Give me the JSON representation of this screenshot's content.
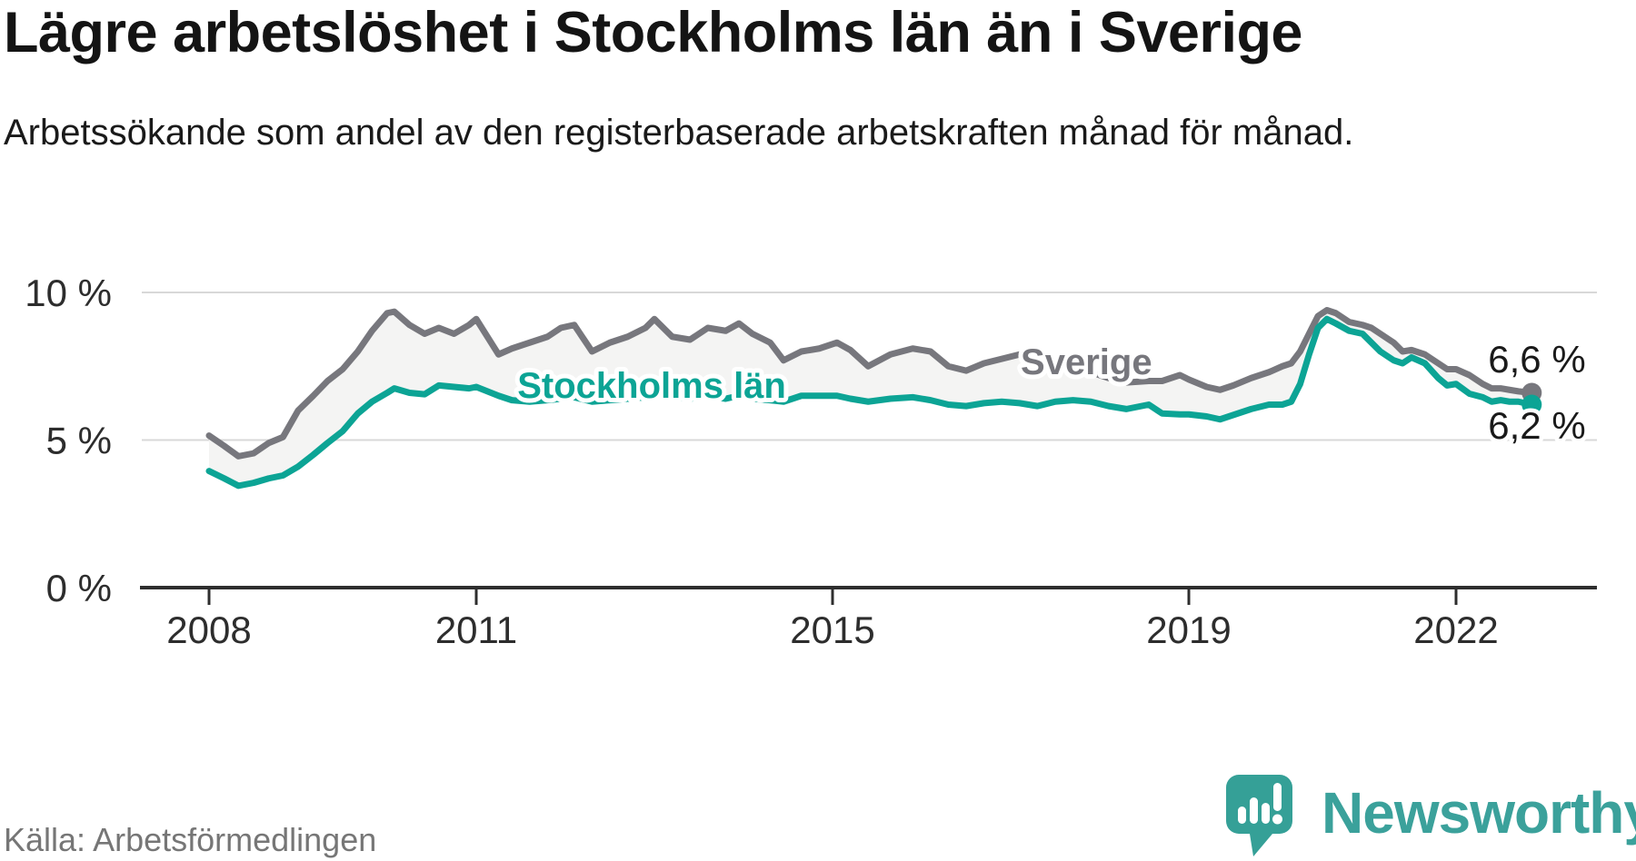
{
  "title": "Lägre arbetslöshet i Stockholms län än i Sverige",
  "subtitle": "Arbetssökande som andel av den registerbaserade arbetskraften månad för månad.",
  "source": "Källa: Arbetsförmedlingen",
  "logo": {
    "text": "Newsworthy",
    "icon": "speech-bubble-bar-chart-exclamation"
  },
  "colors": {
    "sverige": "#77777d",
    "stockholm": "#0ca495",
    "area_fill": "#f4f4f3",
    "gridline": "#d8d8d8",
    "axis": "#2e2e2e",
    "tick_label": "#2d2d2d",
    "end_label": "#1a1a1a",
    "logo_teal": "#35a097",
    "logo_text": "#3ba19b"
  },
  "chart_data": {
    "type": "line",
    "title": "Lägre arbetslöshet i Stockholms län än i Sverige",
    "subtitle": "Arbetssökande som andel av den registerbaserade arbetskraften månad för månad.",
    "xlabel": "",
    "ylabel": "",
    "ylim": [
      0,
      10.8
    ],
    "x_range": [
      2008.0,
      2022.85
    ],
    "grid": "horizontal-only",
    "legend_position": "inline-labels",
    "y_ticks": [
      {
        "value": 0,
        "label": "0 %"
      },
      {
        "value": 5,
        "label": "5 %"
      },
      {
        "value": 10,
        "label": "10 %"
      }
    ],
    "x_ticks": [
      {
        "value": 2008,
        "label": "2008"
      },
      {
        "value": 2011,
        "label": "2011"
      },
      {
        "value": 2015,
        "label": "2015"
      },
      {
        "value": 2019,
        "label": "2019"
      },
      {
        "value": 2022,
        "label": "2022"
      }
    ],
    "x": [
      2008.0,
      2008.17,
      2008.33,
      2008.5,
      2008.67,
      2008.83,
      2009.0,
      2009.17,
      2009.33,
      2009.5,
      2009.67,
      2009.83,
      2010.0,
      2010.08,
      2010.25,
      2010.42,
      2010.58,
      2010.75,
      2010.92,
      2011.0,
      2011.25,
      2011.4,
      2011.6,
      2011.8,
      2011.95,
      2012.1,
      2012.3,
      2012.5,
      2012.7,
      2012.9,
      2013.0,
      2013.2,
      2013.4,
      2013.6,
      2013.8,
      2013.95,
      2014.1,
      2014.3,
      2014.45,
      2014.65,
      2014.85,
      2015.05,
      2015.2,
      2015.4,
      2015.65,
      2015.9,
      2016.1,
      2016.3,
      2016.5,
      2016.7,
      2016.9,
      2017.1,
      2017.3,
      2017.5,
      2017.7,
      2017.9,
      2018.1,
      2018.3,
      2018.55,
      2018.7,
      2018.9,
      2019.0,
      2019.2,
      2019.35,
      2019.5,
      2019.7,
      2019.9,
      2020.05,
      2020.15,
      2020.25,
      2020.35,
      2020.45,
      2020.55,
      2020.65,
      2020.8,
      2020.95,
      2021.05,
      2021.15,
      2021.3,
      2021.4,
      2021.5,
      2021.65,
      2021.8,
      2021.9,
      2022.0,
      2022.15,
      2022.3,
      2022.4,
      2022.5,
      2022.6,
      2022.7,
      2022.85
    ],
    "series": [
      {
        "id": "sverige",
        "name": "Sverige",
        "color": "#77777d",
        "end_label": "6,6 %",
        "end_value": 6.6,
        "label_pos": {
          "x": 2017.85,
          "y": 7.23
        },
        "end_label_pos": {
          "x": 2022.36,
          "y": 7.29
        },
        "values": [
          5.15,
          4.8,
          4.45,
          4.55,
          4.9,
          5.1,
          6.0,
          6.5,
          7.0,
          7.4,
          8.0,
          8.7,
          9.3,
          9.35,
          8.9,
          8.6,
          8.8,
          8.6,
          8.9,
          9.1,
          7.9,
          8.1,
          8.3,
          8.5,
          8.8,
          8.9,
          8.0,
          8.3,
          8.5,
          8.8,
          9.1,
          8.5,
          8.4,
          8.8,
          8.7,
          8.95,
          8.6,
          8.3,
          7.7,
          8.0,
          8.1,
          8.3,
          8.05,
          7.5,
          7.9,
          8.1,
          8.0,
          7.5,
          7.35,
          7.6,
          7.75,
          7.9,
          7.6,
          7.5,
          7.4,
          7.3,
          7.1,
          6.95,
          7.0,
          7.0,
          7.2,
          7.05,
          6.8,
          6.7,
          6.85,
          7.1,
          7.3,
          7.5,
          7.6,
          8.0,
          8.6,
          9.2,
          9.4,
          9.3,
          9.0,
          8.9,
          8.8,
          8.6,
          8.3,
          8.0,
          8.05,
          7.9,
          7.6,
          7.4,
          7.4,
          7.2,
          6.9,
          6.75,
          6.75,
          6.7,
          6.65,
          6.6
        ]
      },
      {
        "id": "stockholms-lan",
        "name": "Stockholms län",
        "color": "#0ca495",
        "end_label": "6,2 %",
        "end_value": 6.2,
        "label_pos": {
          "x": 2012.97,
          "y": 6.43
        },
        "end_label_pos": {
          "x": 2022.36,
          "y": 5.05
        },
        "values": [
          3.95,
          3.7,
          3.45,
          3.55,
          3.7,
          3.8,
          4.1,
          4.5,
          4.9,
          5.3,
          5.9,
          6.3,
          6.6,
          6.75,
          6.6,
          6.55,
          6.85,
          6.8,
          6.75,
          6.8,
          6.5,
          6.35,
          6.3,
          6.35,
          6.4,
          6.45,
          6.3,
          6.35,
          6.4,
          6.45,
          6.6,
          6.45,
          6.4,
          6.5,
          6.4,
          6.5,
          6.4,
          6.35,
          6.3,
          6.5,
          6.5,
          6.5,
          6.4,
          6.3,
          6.4,
          6.45,
          6.35,
          6.2,
          6.15,
          6.25,
          6.3,
          6.25,
          6.15,
          6.3,
          6.35,
          6.3,
          6.15,
          6.05,
          6.2,
          5.9,
          5.87,
          5.87,
          5.8,
          5.7,
          5.85,
          6.05,
          6.2,
          6.2,
          6.3,
          6.9,
          7.9,
          8.8,
          9.1,
          8.95,
          8.7,
          8.6,
          8.3,
          8.0,
          7.7,
          7.6,
          7.8,
          7.6,
          7.1,
          6.85,
          6.9,
          6.57,
          6.45,
          6.3,
          6.35,
          6.3,
          6.3,
          6.2
        ]
      }
    ]
  }
}
